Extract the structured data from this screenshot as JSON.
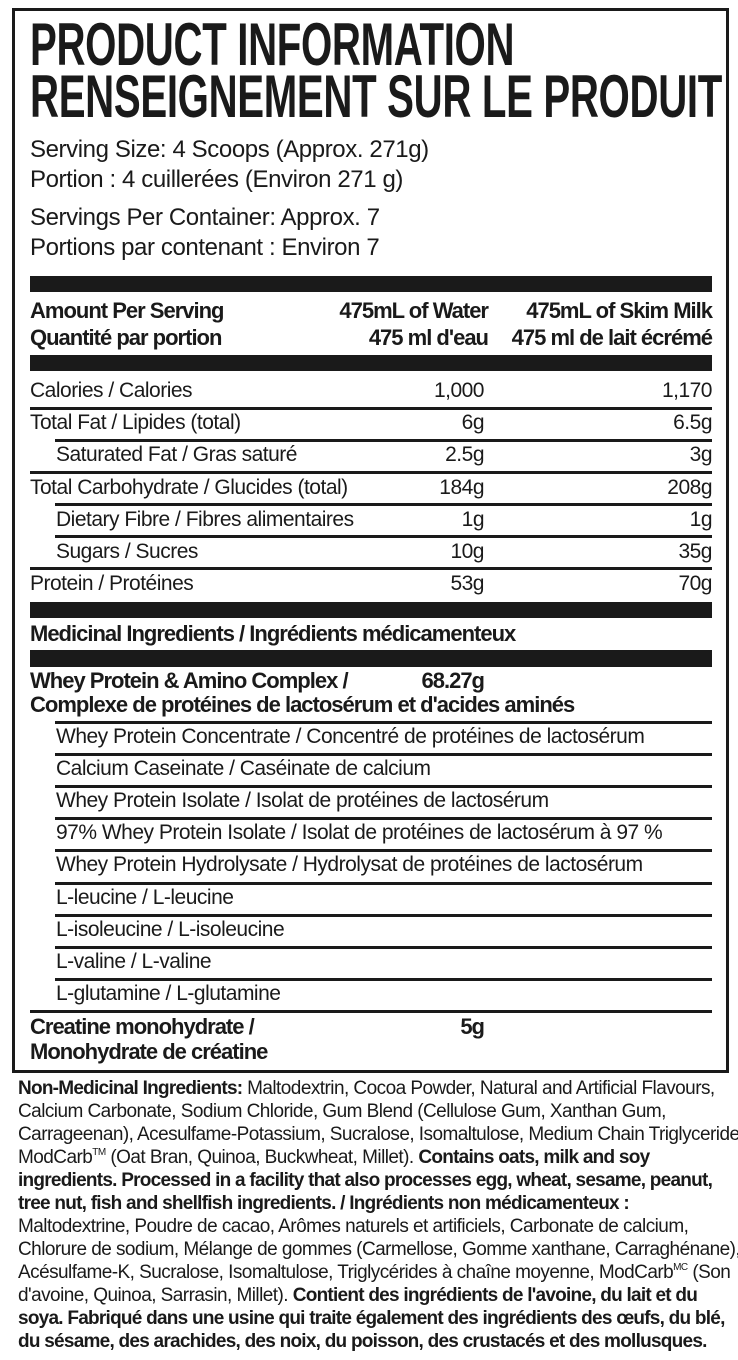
{
  "title": {
    "line1": "PRODUCT INFORMATION",
    "line2": "RENSEIGNEMENT SUR LE PRODUIT"
  },
  "serving": {
    "size_en": "Serving Size: 4 Scoops (Approx. 271g)",
    "size_fr": "Portion : 4 cuillerées (Environ 271 g)",
    "per_container_en": "Servings Per Container: Approx. 7",
    "per_container_fr": "Portions par contenant : Environ 7"
  },
  "header": {
    "amount_en": "Amount Per Serving",
    "amount_fr": "Quantité par portion",
    "col1_en": "475mL of Water",
    "col1_fr": "475 ml d'eau",
    "col2_en": "475mL of Skim Milk",
    "col2_fr": "475 ml de lait écrémé"
  },
  "nutrients": [
    {
      "label": "Calories / Calories",
      "water": "1,000",
      "milk": "1,170"
    },
    {
      "label": "Total Fat / Lipides (total)",
      "water": "6g",
      "milk": "6.5g"
    },
    {
      "label": "Saturated Fat / Gras saturé",
      "water": "2.5g",
      "milk": "3g"
    },
    {
      "label": "Total Carbohydrate / Glucides (total)",
      "water": "184g",
      "milk": "208g"
    },
    {
      "label": "Dietary Fibre / Fibres alimentaires",
      "water": "1g",
      "milk": "1g"
    },
    {
      "label": "Sugars / Sucres",
      "water": "10g",
      "milk": "35g"
    },
    {
      "label": "Protein / Protéines",
      "water": "53g",
      "milk": "70g"
    }
  ],
  "medicinal": {
    "heading": "Medicinal Ingredients / Ingrédients médicamenteux",
    "complex": {
      "line1": "Whey Protein & Amino Complex /",
      "line2": "Complexe de protéines de lactosérum et d'acides aminés",
      "amount": "68.27g"
    },
    "components": [
      "Whey Protein Concentrate / Concentré de protéines de lactosérum",
      "Calcium Caseinate / Caséinate de calcium",
      "Whey Protein Isolate / Isolat de protéines de lactosérum",
      "97% Whey Protein Isolate / Isolat de protéines de lactosérum à 97 %",
      "Whey Protein Hydrolysate / Hydrolysat de protéines de lactosérum",
      "L-leucine / L-leucine",
      "L-isoleucine / L-isoleucine",
      "L-valine / L-valine",
      "L-glutamine / L-glutamine"
    ],
    "creatine": {
      "line1": "Creatine monohydrate /",
      "line2": "Monohydrate de créatine",
      "amount": "5g"
    }
  },
  "non_medicinal_lines": [
    [
      {
        "t": "Non-Medicinal Ingredients:",
        "b": true
      },
      {
        "t": " Maltodextrin, Cocoa Powder, Natural and Artificial Flavours,"
      }
    ],
    [
      {
        "t": "Calcium Carbonate, Sodium Chloride, Gum Blend (Cellulose Gum, Xanthan Gum,"
      }
    ],
    [
      {
        "t": "Carrageenan), Acesulfame-Potassium, Sucralose, Isomaltulose, Medium Chain Triglycerides,"
      }
    ],
    [
      {
        "t": "ModCarb"
      },
      {
        "t": "TM",
        "sup": true
      },
      {
        "t": " (Oat Bran, Quinoa, Buckwheat, Millet). "
      },
      {
        "t": "Contains oats, milk and soy",
        "b": true
      }
    ],
    [
      {
        "t": "ingredients. Processed in a facility that also processes egg, wheat, sesame, peanut,",
        "b": true
      }
    ],
    [
      {
        "t": "tree nut, fish and shellfish ingredients. / Ingrédients non médicamenteux :",
        "b": true
      }
    ],
    [
      {
        "t": "Maltodextrine, Poudre de cacao, Arômes naturels et artificiels, Carbonate de calcium,"
      }
    ],
    [
      {
        "t": "Chlorure de sodium, Mélange de gommes (Carmellose, Gomme xanthane, Carraghénane),"
      }
    ],
    [
      {
        "t": "Acésulfame-K, Sucralose, Isomaltulose, Triglycérides à chaîne moyenne, ModCarb"
      },
      {
        "t": "MC",
        "sup": true
      },
      {
        "t": " (Son"
      }
    ],
    [
      {
        "t": "d'avoine, Quinoa, Sarrasin, Millet). "
      },
      {
        "t": "Contient des ingrédients de l'avoine, du lait et du",
        "b": true
      }
    ],
    [
      {
        "t": "soya. Fabriqué dans une usine qui traite également des ingrédients des œufs, du blé,",
        "b": true
      }
    ],
    [
      {
        "t": "du sésame, des arachides, des noix, du poisson, des crustacés et des mollusques.",
        "b": true
      }
    ]
  ]
}
